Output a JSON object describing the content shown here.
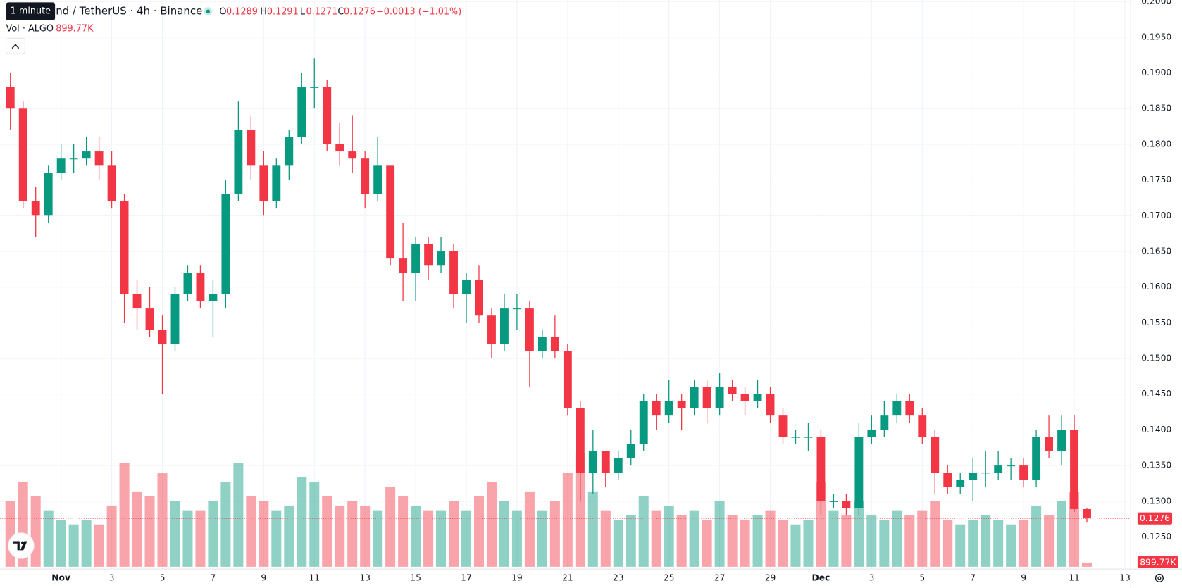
{
  "chart_data": {
    "type": "candlestick",
    "legend": {
      "tooltip": "1 minute",
      "symbol": "nd / TetherUS · 4h · Binance",
      "open_key": "O",
      "high_key": "H",
      "low_key": "L",
      "close_key": "C",
      "change": "−0.0013 (−1.01%)",
      "volume_title": "Vol · ALGO"
    },
    "volume_label": "899.77K",
    "up_color": "#089981",
    "down_color": "#f23645",
    "x": [
      -2,
      -1.5,
      -1,
      -0.5,
      0,
      0.5,
      1,
      1.5,
      2,
      2.5,
      3,
      3.5,
      4,
      4.5,
      5,
      5.5,
      6,
      6.5,
      7,
      7.5,
      8,
      8.5,
      9,
      9.5,
      10,
      10.5,
      11,
      11.5,
      12,
      12.5,
      13,
      13.5,
      14,
      14.5,
      15,
      15.5,
      16,
      16.5,
      17,
      17.5,
      18,
      18.5,
      19,
      19.5,
      20,
      20.5,
      21,
      21.5,
      22,
      22.5,
      23,
      23.5,
      24,
      24.5,
      25,
      25.5,
      26,
      26.5,
      27,
      27.5,
      28,
      28.5,
      29,
      29.5,
      30,
      30.5,
      31,
      31.5,
      32,
      32.5,
      33,
      33.5,
      34,
      34.5,
      35,
      35.5,
      36,
      36.5,
      37,
      37.5,
      38,
      38.5,
      39,
      39.5,
      40,
      40.5
    ],
    "open": [
      0.188,
      0.185,
      0.172,
      0.17,
      0.176,
      0.178,
      0.178,
      0.179,
      0.177,
      0.172,
      0.159,
      0.157,
      0.154,
      0.152,
      0.159,
      0.162,
      0.158,
      0.159,
      0.173,
      0.182,
      0.177,
      0.172,
      0.177,
      0.181,
      0.188,
      0.188,
      0.18,
      0.179,
      0.178,
      0.173,
      0.177,
      0.164,
      0.162,
      0.166,
      0.163,
      0.165,
      0.159,
      0.161,
      0.156,
      0.152,
      0.157,
      0.157,
      0.151,
      0.153,
      0.151,
      0.143,
      0.134,
      0.137,
      0.134,
      0.136,
      0.138,
      0.144,
      0.142,
      0.144,
      0.143,
      0.146,
      0.143,
      0.146,
      0.145,
      0.144,
      0.145,
      0.142,
      0.139,
      0.139,
      0.139,
      0.13,
      0.13,
      0.129,
      0.139,
      0.14,
      0.142,
      0.144,
      0.142,
      0.139,
      0.134,
      0.132,
      0.133,
      0.134,
      0.134,
      0.135,
      0.135,
      0.133,
      0.139,
      0.137,
      0.14,
      0.1289
    ],
    "high": [
      0.19,
      0.186,
      0.174,
      0.177,
      0.18,
      0.18,
      0.181,
      0.181,
      0.179,
      0.173,
      0.161,
      0.16,
      0.156,
      0.16,
      0.163,
      0.163,
      0.161,
      0.175,
      0.186,
      0.184,
      0.179,
      0.178,
      0.182,
      0.19,
      0.192,
      0.189,
      0.183,
      0.184,
      0.179,
      0.181,
      0.177,
      0.169,
      0.167,
      0.167,
      0.167,
      0.166,
      0.162,
      0.163,
      0.157,
      0.159,
      0.159,
      0.158,
      0.154,
      0.156,
      0.152,
      0.144,
      0.14,
      0.137,
      0.137,
      0.14,
      0.145,
      0.145,
      0.147,
      0.145,
      0.147,
      0.147,
      0.148,
      0.147,
      0.146,
      0.147,
      0.146,
      0.143,
      0.14,
      0.141,
      0.14,
      0.131,
      0.131,
      0.141,
      0.142,
      0.144,
      0.145,
      0.145,
      0.143,
      0.14,
      0.135,
      0.134,
      0.136,
      0.137,
      0.137,
      0.136,
      0.136,
      0.14,
      0.142,
      0.142,
      0.142,
      0.1291
    ],
    "low": [
      0.182,
      0.171,
      0.167,
      0.169,
      0.175,
      0.176,
      0.177,
      0.175,
      0.171,
      0.155,
      0.154,
      0.153,
      0.145,
      0.151,
      0.158,
      0.157,
      0.153,
      0.157,
      0.172,
      0.175,
      0.17,
      0.171,
      0.175,
      0.18,
      0.185,
      0.179,
      0.177,
      0.176,
      0.171,
      0.172,
      0.163,
      0.158,
      0.158,
      0.161,
      0.162,
      0.157,
      0.155,
      0.155,
      0.15,
      0.151,
      0.154,
      0.146,
      0.15,
      0.15,
      0.142,
      0.13,
      0.131,
      0.132,
      0.133,
      0.135,
      0.137,
      0.14,
      0.141,
      0.14,
      0.142,
      0.141,
      0.142,
      0.144,
      0.142,
      0.143,
      0.141,
      0.138,
      0.138,
      0.137,
      0.128,
      0.129,
      0.128,
      0.128,
      0.138,
      0.139,
      0.141,
      0.141,
      0.138,
      0.131,
      0.131,
      0.131,
      0.13,
      0.132,
      0.133,
      0.133,
      0.132,
      0.132,
      0.136,
      0.135,
      0.1285,
      0.1271
    ],
    "close": [
      0.185,
      0.172,
      0.17,
      0.176,
      0.178,
      0.178,
      0.179,
      0.177,
      0.172,
      0.159,
      0.157,
      0.154,
      0.152,
      0.159,
      0.162,
      0.158,
      0.159,
      0.173,
      0.182,
      0.177,
      0.172,
      0.177,
      0.181,
      0.188,
      0.188,
      0.18,
      0.179,
      0.178,
      0.173,
      0.177,
      0.164,
      0.162,
      0.166,
      0.163,
      0.165,
      0.159,
      0.161,
      0.156,
      0.152,
      0.157,
      0.157,
      0.151,
      0.153,
      0.151,
      0.143,
      0.134,
      0.137,
      0.134,
      0.136,
      0.138,
      0.144,
      0.142,
      0.144,
      0.143,
      0.146,
      0.143,
      0.146,
      0.145,
      0.144,
      0.145,
      0.142,
      0.139,
      0.139,
      0.139,
      0.13,
      0.13,
      0.129,
      0.139,
      0.14,
      0.142,
      0.144,
      0.142,
      0.139,
      0.134,
      0.132,
      0.133,
      0.134,
      0.134,
      0.135,
      0.135,
      0.133,
      0.139,
      0.137,
      0.14,
      0.1289,
      0.1276
    ],
    "volume": [
      14000000,
      18000000,
      15000000,
      12000000,
      10000000,
      9000000,
      10000000,
      9000000,
      13000000,
      22000000,
      16000000,
      15000000,
      20000000,
      14000000,
      12000000,
      12000000,
      14000000,
      18000000,
      22000000,
      15000000,
      14000000,
      12000000,
      13000000,
      19000000,
      18000000,
      15000000,
      13000000,
      14000000,
      13000000,
      12000000,
      17000000,
      15000000,
      13000000,
      12000000,
      12000000,
      14000000,
      12000000,
      15000000,
      18000000,
      14000000,
      12000000,
      16000000,
      12000000,
      14000000,
      20000000,
      24000000,
      16000000,
      12000000,
      10000000,
      11000000,
      15000000,
      12000000,
      13000000,
      11000000,
      12000000,
      10000000,
      14000000,
      11000000,
      10000000,
      11000000,
      12000000,
      10000000,
      9000000,
      10000000,
      18000000,
      12000000,
      11000000,
      14000000,
      11000000,
      10000000,
      12000000,
      11000000,
      12000000,
      14000000,
      10000000,
      9000000,
      10000000,
      11000000,
      10000000,
      9000000,
      10000000,
      13000000,
      11000000,
      14000000,
      16000000,
      899770
    ],
    "xlim": [
      -2.41,
      42.23
    ],
    "xticks": [
      {
        "value": 0,
        "label": "Nov"
      },
      {
        "value": 2,
        "label": "3"
      },
      {
        "value": 4,
        "label": "5"
      },
      {
        "value": 6,
        "label": "7"
      },
      {
        "value": 8,
        "label": "9"
      },
      {
        "value": 10,
        "label": "11"
      },
      {
        "value": 12,
        "label": "13"
      },
      {
        "value": 14,
        "label": "15"
      },
      {
        "value": 16,
        "label": "17"
      },
      {
        "value": 18,
        "label": "19"
      },
      {
        "value": 20,
        "label": "21"
      },
      {
        "value": 22,
        "label": "23"
      },
      {
        "value": 24,
        "label": "25"
      },
      {
        "value": 26,
        "label": "27"
      },
      {
        "value": 28,
        "label": "29"
      },
      {
        "value": 30,
        "label": "Dec"
      },
      {
        "value": 32,
        "label": "3"
      },
      {
        "value": 34,
        "label": "5"
      },
      {
        "value": 36,
        "label": "7"
      },
      {
        "value": 38,
        "label": "9"
      },
      {
        "value": 40,
        "label": "11"
      },
      {
        "value": 42,
        "label": "13"
      }
    ],
    "ylim": [
      0.1205,
      0.2002
    ],
    "yticks": [
      {
        "value": 0.125,
        "label": "0.1250"
      },
      {
        "value": 0.13,
        "label": "0.1300"
      },
      {
        "value": 0.135,
        "label": "0.1350"
      },
      {
        "value": 0.14,
        "label": "0.1400"
      },
      {
        "value": 0.145,
        "label": "0.1450"
      },
      {
        "value": 0.15,
        "label": "0.1500"
      },
      {
        "value": 0.155,
        "label": "0.1550"
      },
      {
        "value": 0.16,
        "label": "0.1600"
      },
      {
        "value": 0.165,
        "label": "0.1650"
      },
      {
        "value": 0.17,
        "label": "0.1700"
      },
      {
        "value": 0.175,
        "label": "0.1750"
      },
      {
        "value": 0.18,
        "label": "0.1800"
      },
      {
        "value": 0.185,
        "label": "0.1850"
      },
      {
        "value": 0.19,
        "label": "0.1900"
      },
      {
        "value": 0.195,
        "label": "0.1950"
      },
      {
        "value": 0.2,
        "label": "0.2000"
      }
    ],
    "grid": true
  }
}
